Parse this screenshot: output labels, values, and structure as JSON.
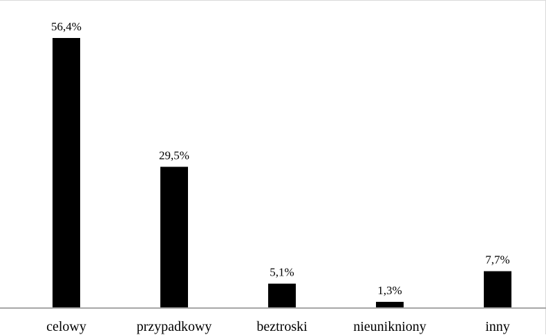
{
  "chart_data": {
    "type": "bar",
    "title": "",
    "xlabel": "",
    "ylabel": "",
    "categories": [
      "celowy",
      "przypadkowy",
      "beztroski",
      "nieunikniony",
      "inny"
    ],
    "values": [
      56.4,
      29.5,
      5.1,
      1.3,
      7.7
    ],
    "value_labels": [
      "56,4%",
      "29,5%",
      "5,1%",
      "1,3%",
      "7,7%"
    ],
    "unit": "%",
    "ylim": [
      0,
      60
    ],
    "grid": false,
    "legend": "none",
    "bar_color": "#000000",
    "axis_color": "#a6a6a6"
  }
}
